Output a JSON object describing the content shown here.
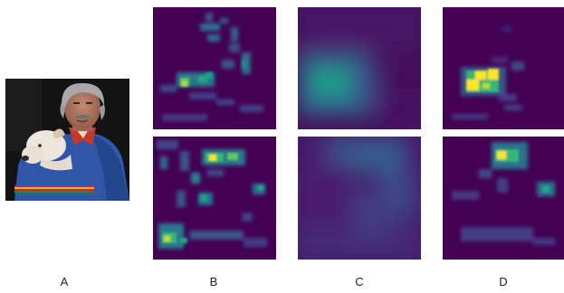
{
  "figure": {
    "panel_labels": [
      "A",
      "B",
      "C",
      "D"
    ],
    "colormap": [
      "#440154",
      "#3b528b",
      "#21918c",
      "#5ec962",
      "#fde725"
    ],
    "background": "#ffffff"
  },
  "photo": {
    "description_icon": "photo-man-with-dog-icon",
    "colors": {
      "background": "#141414",
      "sweater": "#2e55a6",
      "hair": "#a9a9a9",
      "skin": "#b47a62",
      "dog": "#ece5da"
    }
  }
}
